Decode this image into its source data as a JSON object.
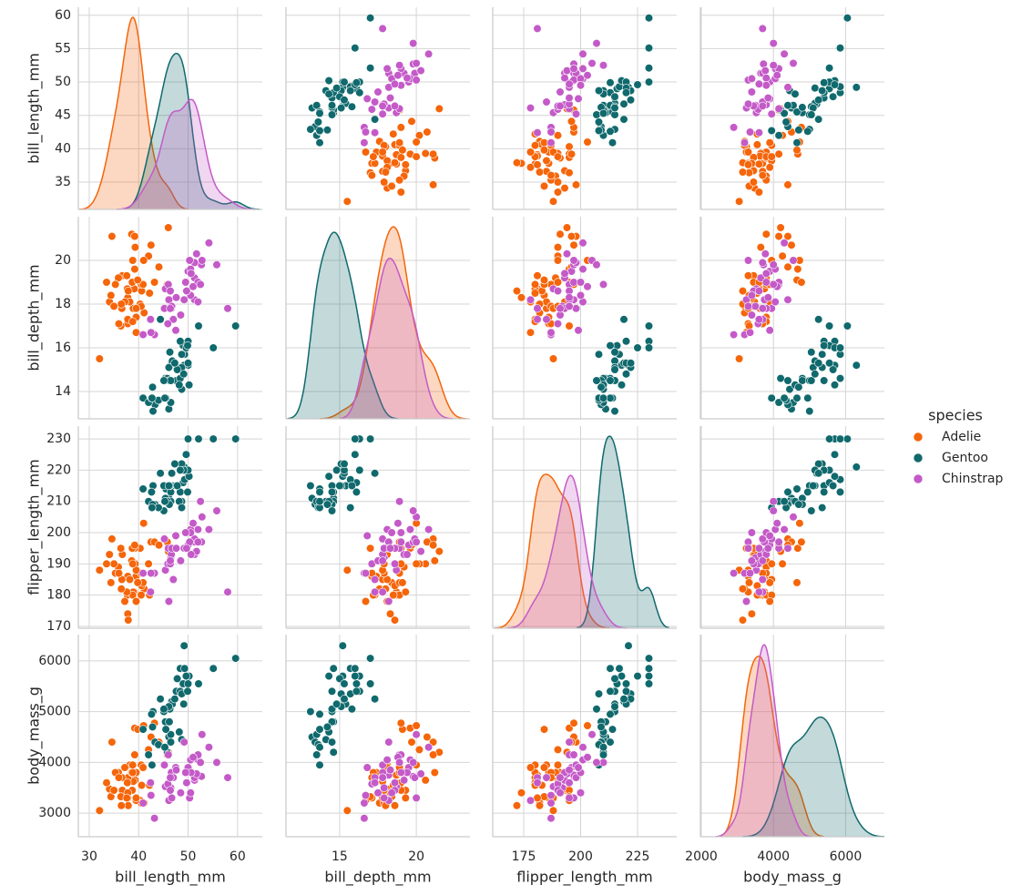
{
  "chart_data": {
    "type": "pairplot",
    "variables": [
      "bill_length_mm",
      "bill_depth_mm",
      "flipper_length_mm",
      "body_mass_g"
    ],
    "legend_title": "species",
    "grid": true,
    "axes": [
      {
        "xlim": [
          27.8,
          65.0
        ],
        "xticks": [
          30,
          40,
          50,
          60
        ],
        "ylim": [
          30.9,
          61.2
        ],
        "yticks": [
          35,
          40,
          45,
          50,
          55,
          60
        ]
      },
      {
        "xlim": [
          11.5,
          23.5
        ],
        "xticks": [
          15,
          20
        ],
        "ylim": [
          12.75,
          22.0
        ],
        "yticks": [
          14,
          16,
          18,
          20
        ]
      },
      {
        "xlim": [
          161.4,
          242.2
        ],
        "xticks": [
          175,
          200,
          225
        ],
        "ylim": [
          169.4,
          234.1
        ],
        "yticks": [
          170,
          180,
          190,
          200,
          210,
          220,
          230
        ]
      },
      {
        "xlim": [
          1975,
          7075
        ],
        "xticks": [
          2000,
          4000,
          6000
        ],
        "ylim": [
          2536,
          6518
        ],
        "yticks": [
          3000,
          4000,
          5000,
          6000
        ]
      }
    ],
    "series": [
      {
        "name": "Adelie",
        "color": "#f5650a",
        "values": [
          [
            39.1,
            39.5,
            40.3,
            36.7,
            39.3,
            38.9,
            39.2,
            34.1,
            42.0,
            37.8,
            37.8,
            41.1,
            38.6,
            34.6,
            36.6,
            38.7,
            42.5,
            34.4,
            46.0,
            37.8,
            37.7,
            35.9,
            38.2,
            38.8,
            35.3,
            40.6,
            40.5,
            37.9,
            40.5,
            39.5,
            37.2,
            39.5,
            40.9,
            36.4,
            39.2,
            38.8,
            42.2,
            37.6,
            39.8,
            36.5,
            32.1,
            43.2,
            35.0,
            41.0,
            36.0,
            44.1,
            33.5,
            45.8
          ],
          [
            18.7,
            17.4,
            18.0,
            19.3,
            20.6,
            17.8,
            19.6,
            18.1,
            20.2,
            17.1,
            17.3,
            17.6,
            21.2,
            21.1,
            17.8,
            19.0,
            20.7,
            18.4,
            21.5,
            18.3,
            18.7,
            19.2,
            18.1,
            17.2,
            18.9,
            18.6,
            17.9,
            18.6,
            18.9,
            16.7,
            18.1,
            17.8,
            18.9,
            17.0,
            21.1,
            20.0,
            18.5,
            19.3,
            19.1,
            18.0,
            15.5,
            19.0,
            17.9,
            20.0,
            17.1,
            19.7,
            19.0,
            18.9
          ],
          [
            181,
            186,
            195,
            193,
            190,
            181,
            195,
            193,
            190,
            186,
            180,
            182,
            191,
            198,
            185,
            195,
            197,
            184,
            194,
            174,
            180,
            189,
            185,
            180,
            187,
            183,
            187,
            172,
            180,
            178,
            178,
            188,
            184,
            195,
            196,
            190,
            180,
            181,
            184,
            182,
            188,
            197,
            190,
            203,
            187,
            196,
            190,
            197
          ],
          [
            3750,
            3800,
            3250,
            3450,
            3650,
            3625,
            4675,
            3475,
            4250,
            3300,
            3700,
            3200,
            3800,
            4400,
            3700,
            3450,
            4500,
            3325,
            4200,
            3400,
            3600,
            3800,
            3950,
            3800,
            3800,
            3550,
            3200,
            3150,
            3950,
            3250,
            3900,
            3300,
            3900,
            3325,
            4150,
            3950,
            3550,
            3300,
            4650,
            3150,
            3050,
            4775,
            3450,
            4725,
            3700,
            4400,
            3600,
            4150
          ]
        ]
      },
      {
        "name": "Gentoo",
        "color": "#10696d",
        "values": [
          [
            46.1,
            50.0,
            48.7,
            50.0,
            47.6,
            46.5,
            45.4,
            46.7,
            43.3,
            46.8,
            40.9,
            49.0,
            45.5,
            48.4,
            45.8,
            49.3,
            42.0,
            49.2,
            46.2,
            48.7,
            50.2,
            45.1,
            46.5,
            46.3,
            42.9,
            46.1,
            47.8,
            48.2,
            50.0,
            47.3,
            42.8,
            45.1,
            59.6,
            49.1,
            48.4,
            42.6,
            44.4,
            44.0,
            48.7,
            42.7,
            49.6,
            45.3,
            49.9,
            55.1,
            52.1
          ],
          [
            13.2,
            16.3,
            14.1,
            15.2,
            14.5,
            13.5,
            14.6,
            15.3,
            13.4,
            15.4,
            13.7,
            16.1,
            13.7,
            14.6,
            14.6,
            15.7,
            13.5,
            15.2,
            14.5,
            15.1,
            14.3,
            14.5,
            14.5,
            15.8,
            13.1,
            15.1,
            15.0,
            14.3,
            15.3,
            15.3,
            14.2,
            14.5,
            17.0,
            14.8,
            16.3,
            13.7,
            17.3,
            13.6,
            15.7,
            13.7,
            16.0,
            13.7,
            16.1,
            16.0,
            17.0
          ],
          [
            211,
            230,
            210,
            218,
            215,
            210,
            211,
            219,
            209,
            215,
            214,
            216,
            214,
            213,
            210,
            217,
            210,
            221,
            209,
            222,
            218,
            215,
            213,
            215,
            215,
            215,
            215,
            210,
            220,
            222,
            209,
            207,
            230,
            220,
            220,
            213,
            219,
            208,
            208,
            208,
            225,
            210,
            213,
            230,
            230
          ],
          [
            4500,
            5700,
            4450,
            5700,
            5400,
            4550,
            4800,
            5200,
            4400,
            5150,
            4650,
            5550,
            4650,
            5850,
            4200,
            5850,
            4150,
            6300,
            4800,
            5350,
            5700,
            5000,
            4400,
            5050,
            5000,
            5100,
            5650,
            4600,
            5550,
            5250,
            4700,
            5050,
            6050,
            5150,
            5400,
            4950,
            5250,
            4350,
            5350,
            3950,
            5700,
            4300,
            5400,
            5850,
            5550
          ]
        ]
      },
      {
        "name": "Chinstrap",
        "color": "#c45ac8",
        "values": [
          [
            46.5,
            50.0,
            51.3,
            45.4,
            52.7,
            45.2,
            46.1,
            51.3,
            46.0,
            51.3,
            46.6,
            51.7,
            47.0,
            52.0,
            45.9,
            50.5,
            50.3,
            58.0,
            46.4,
            49.2,
            42.4,
            48.5,
            43.2,
            50.6,
            46.7,
            52.0,
            50.5,
            49.5,
            46.4,
            52.8,
            40.9,
            54.2,
            42.5,
            51.0,
            49.7,
            47.5,
            47.6,
            52.5,
            55.8
          ],
          [
            17.9,
            19.5,
            19.2,
            18.7,
            19.8,
            17.8,
            18.2,
            18.2,
            18.9,
            19.9,
            17.8,
            20.3,
            17.3,
            18.1,
            17.1,
            19.6,
            20.0,
            17.8,
            18.6,
            18.2,
            17.3,
            17.5,
            16.6,
            19.4,
            17.9,
            19.0,
            18.4,
            19.0,
            17.8,
            20.0,
            16.6,
            20.8,
            16.7,
            18.8,
            18.6,
            16.8,
            18.3,
            18.9,
            19.8
          ],
          [
            192,
            196,
            193,
            188,
            197,
            198,
            178,
            197,
            195,
            198,
            193,
            194,
            185,
            201,
            190,
            201,
            197,
            181,
            190,
            195,
            181,
            191,
            187,
            193,
            195,
            197,
            200,
            200,
            191,
            205,
            187,
            201,
            187,
            203,
            195,
            199,
            195,
            210,
            207
          ],
          [
            3500,
            3900,
            3650,
            3525,
            3725,
            3950,
            3250,
            3750,
            4150,
            3700,
            3800,
            3775,
            3700,
            4050,
            3575,
            4050,
            3300,
            3700,
            3450,
            4400,
            3600,
            3400,
            2900,
            3800,
            3300,
            4150,
            3400,
            3800,
            3700,
            4550,
            3200,
            4300,
            3350,
            4100,
            3600,
            3900,
            3850,
            4000,
            4000
          ]
        ]
      }
    ]
  }
}
